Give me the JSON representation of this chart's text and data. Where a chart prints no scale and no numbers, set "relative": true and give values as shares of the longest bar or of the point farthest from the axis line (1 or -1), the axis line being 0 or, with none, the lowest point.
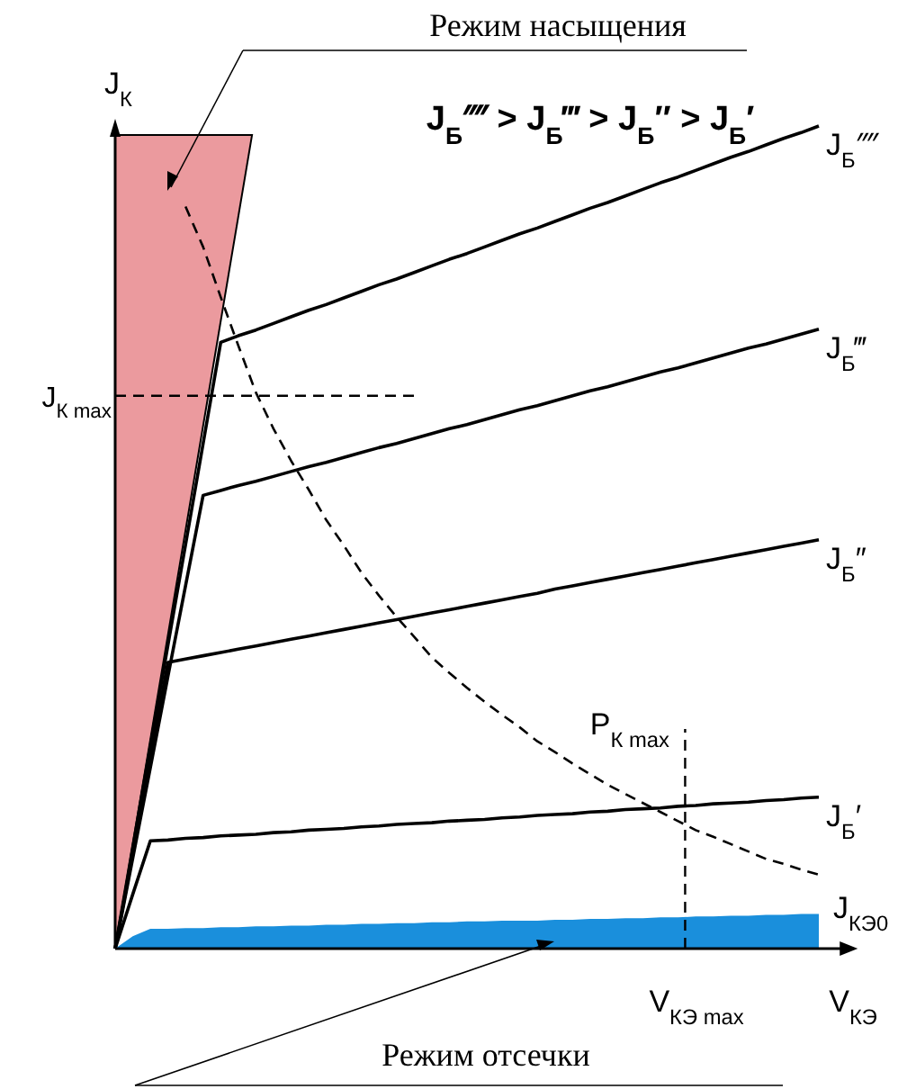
{
  "chart_data": {
    "type": "line",
    "relative": true,
    "xlabel": "V$_{КЭ}$",
    "ylabel": "J$_{К}$",
    "legend": false,
    "marker": "none",
    "line_style": "solid",
    "categories": [
      null,
      null,
      null,
      null,
      null,
      null,
      null,
      null,
      null,
      null,
      null,
      null,
      null,
      null,
      null,
      null,
      null,
      null,
      null,
      null,
      null,
      null,
      null,
      null,
      null,
      null,
      null,
      null,
      null,
      null,
      null,
      null,
      null,
      null,
      null,
      null,
      null,
      null,
      null,
      null,
      null
    ],
    "series": [
      {
        "name": "J$_{Б}$⁗",
        "color": "#000000",
        "values": [
          0,
          0.123,
          0.246,
          0.369,
          0.491,
          0.614,
          0.737,
          0.745,
          0.752,
          0.76,
          0.768,
          0.776,
          0.783,
          0.791,
          0.799,
          0.807,
          0.814,
          0.822,
          0.83,
          0.838,
          0.845,
          0.853,
          0.861,
          0.869,
          0.876,
          0.884,
          0.892,
          0.9,
          0.907,
          0.915,
          0.923,
          0.931,
          0.938,
          0.946,
          0.954,
          0.962,
          0.969,
          0.977,
          0.985,
          0.992,
          1
        ]
      },
      {
        "name": "J$_{Б}$‴",
        "color": "#000000",
        "values": [
          0,
          0.11,
          0.22,
          0.331,
          0.441,
          0.551,
          0.557,
          0.563,
          0.568,
          0.574,
          0.58,
          0.586,
          0.591,
          0.597,
          0.603,
          0.609,
          0.614,
          0.62,
          0.626,
          0.632,
          0.637,
          0.643,
          0.649,
          0.655,
          0.66,
          0.666,
          0.672,
          0.678,
          0.683,
          0.689,
          0.695,
          0.701,
          0.706,
          0.712,
          0.718,
          0.724,
          0.73,
          0.735,
          0.741,
          0.747,
          0.753
        ]
      },
      {
        "name": "J$_{Б}$″",
        "color": "#000000",
        "values": [
          0,
          0.116,
          0.232,
          0.348,
          0.352,
          0.356,
          0.36,
          0.364,
          0.368,
          0.372,
          0.376,
          0.38,
          0.384,
          0.388,
          0.392,
          0.396,
          0.4,
          0.404,
          0.408,
          0.412,
          0.416,
          0.42,
          0.424,
          0.428,
          0.432,
          0.437,
          0.441,
          0.445,
          0.449,
          0.453,
          0.457,
          0.461,
          0.465,
          0.469,
          0.473,
          0.477,
          0.481,
          0.485,
          0.489,
          0.493,
          0.497
        ]
      },
      {
        "name": "J$_{Б}$′",
        "color": "#000000",
        "values": [
          0,
          0.066,
          0.131,
          0.132,
          0.134,
          0.135,
          0.137,
          0.138,
          0.139,
          0.141,
          0.142,
          0.144,
          0.145,
          0.146,
          0.148,
          0.149,
          0.151,
          0.152,
          0.153,
          0.155,
          0.156,
          0.157,
          0.159,
          0.16,
          0.162,
          0.163,
          0.164,
          0.166,
          0.167,
          0.169,
          0.17,
          0.171,
          0.173,
          0.174,
          0.176,
          0.177,
          0.178,
          0.18,
          0.181,
          0.183,
          0.184
        ]
      },
      {
        "name": "J$_{КЭ0}$",
        "type": "area",
        "color": "#1a8fdc",
        "values": [
          0,
          0.015,
          0.024,
          0.024,
          0.025,
          0.025,
          0.026,
          0.026,
          0.027,
          0.027,
          0.028,
          0.028,
          0.029,
          0.029,
          0.03,
          0.03,
          0.031,
          0.031,
          0.032,
          0.032,
          0.033,
          0.033,
          0.034,
          0.034,
          0.034,
          0.035,
          0.035,
          0.036,
          0.036,
          0.037,
          0.037,
          0.038,
          0.038,
          0.039,
          0.039,
          0.04,
          0.04,
          0.041,
          0.041,
          0.042,
          0.042
        ]
      },
      {
        "name": "P$_{К max}$",
        "color": "#000000",
        "line_style": "dashed",
        "values": [
          null,
          null,
          null,
          null,
          0.902,
          0.853,
          0.792,
          0.733,
          0.676,
          0.632,
          0.593,
          0.558,
          0.521,
          0.49,
          0.457,
          0.429,
          0.403,
          0.379,
          0.354,
          0.335,
          0.317,
          0.3,
          0.284,
          0.269,
          0.252,
          0.239,
          0.225,
          0.212,
          0.199,
          0.188,
          0.177,
          0.166,
          0.155,
          0.144,
          0.136,
          0.127,
          0.118,
          0.109,
          0.103,
          0.096,
          0.09
        ]
      }
    ],
    "ref_lines": [
      {
        "axis": "y",
        "value": 0.672,
        "label": "J$_{К max}$",
        "line_style": "dashed"
      }
    ],
    "annotations": [
      "Режим насыщения",
      "J$_{Б}$⁗ > J$_{Б}$‴ > J$_{Б}$″ > J$_{Б}$′",
      "Режим отсечки",
      "V$_{КЭ max}$"
    ]
  }
}
